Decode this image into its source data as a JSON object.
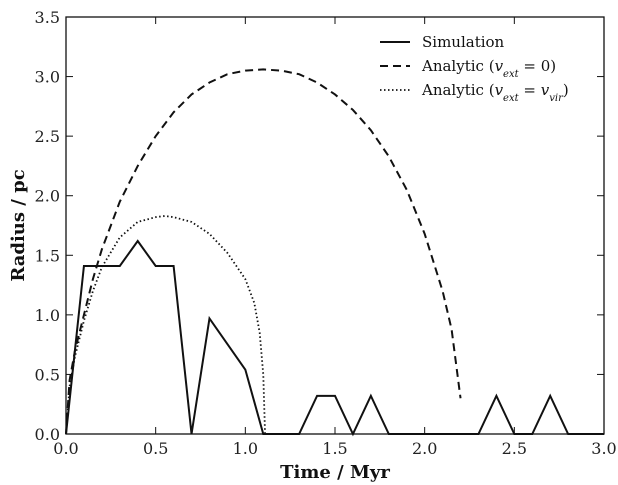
{
  "chart_data": {
    "type": "line",
    "xlabel": "Time / Myr",
    "ylabel": "Radius / pc",
    "xlim": [
      0.0,
      3.0
    ],
    "ylim": [
      0.0,
      3.5
    ],
    "xticks": [
      "0.0",
      "0.5",
      "1.0",
      "1.5",
      "2.0",
      "2.5",
      "3.0"
    ],
    "yticks": [
      "0.0",
      "0.5",
      "1.0",
      "1.5",
      "2.0",
      "2.5",
      "3.0",
      "3.5"
    ],
    "grid": false,
    "legend_position": "top-right",
    "series": [
      {
        "name": "Simulation",
        "style": "solid",
        "color": "#111111",
        "points": [
          [
            0.0,
            0.0
          ],
          [
            0.1,
            1.41
          ],
          [
            0.3,
            1.41
          ],
          [
            0.4,
            1.62
          ],
          [
            0.5,
            1.41
          ],
          [
            0.6,
            1.41
          ],
          [
            0.7,
            0.0
          ],
          [
            0.8,
            0.97
          ],
          [
            1.0,
            0.54
          ],
          [
            1.1,
            0.0
          ],
          [
            1.3,
            0.0
          ],
          [
            1.4,
            0.32
          ],
          [
            1.5,
            0.32
          ],
          [
            1.6,
            0.0
          ],
          [
            1.7,
            0.32
          ],
          [
            1.8,
            0.0
          ],
          [
            2.3,
            0.0
          ],
          [
            2.4,
            0.32
          ],
          [
            2.5,
            0.0
          ],
          [
            2.6,
            0.0
          ],
          [
            2.7,
            0.32
          ],
          [
            2.8,
            0.0
          ],
          [
            3.0,
            0.0
          ]
        ]
      },
      {
        "name_html": "Analytic (<tspan class=\"legend-sub\">v<tspan baseline-shift=\"sub\" font-size=\"11\">ext</tspan> = 0</tspan>)",
        "name": "Analytic (v_ext = 0)",
        "style": "dashed",
        "color": "#111111",
        "points": [
          [
            0.0,
            0.0
          ],
          [
            0.02,
            0.45
          ],
          [
            0.05,
            0.7
          ],
          [
            0.1,
            1.0
          ],
          [
            0.15,
            1.3
          ],
          [
            0.2,
            1.55
          ],
          [
            0.3,
            1.95
          ],
          [
            0.4,
            2.25
          ],
          [
            0.5,
            2.5
          ],
          [
            0.6,
            2.7
          ],
          [
            0.7,
            2.85
          ],
          [
            0.8,
            2.95
          ],
          [
            0.9,
            3.02
          ],
          [
            1.0,
            3.05
          ],
          [
            1.1,
            3.06
          ],
          [
            1.2,
            3.05
          ],
          [
            1.3,
            3.02
          ],
          [
            1.4,
            2.95
          ],
          [
            1.5,
            2.85
          ],
          [
            1.6,
            2.72
          ],
          [
            1.7,
            2.55
          ],
          [
            1.8,
            2.33
          ],
          [
            1.9,
            2.05
          ],
          [
            2.0,
            1.68
          ],
          [
            2.1,
            1.2
          ],
          [
            2.15,
            0.88
          ],
          [
            2.2,
            0.3
          ]
        ]
      },
      {
        "name": "Analytic (v_ext = v_vir)",
        "style": "dotted",
        "color": "#111111",
        "points": [
          [
            0.0,
            0.0
          ],
          [
            0.02,
            0.4
          ],
          [
            0.05,
            0.65
          ],
          [
            0.1,
            0.95
          ],
          [
            0.15,
            1.2
          ],
          [
            0.2,
            1.4
          ],
          [
            0.3,
            1.65
          ],
          [
            0.4,
            1.78
          ],
          [
            0.5,
            1.82
          ],
          [
            0.55,
            1.83
          ],
          [
            0.6,
            1.82
          ],
          [
            0.7,
            1.78
          ],
          [
            0.8,
            1.68
          ],
          [
            0.9,
            1.52
          ],
          [
            1.0,
            1.3
          ],
          [
            1.05,
            1.1
          ],
          [
            1.08,
            0.85
          ],
          [
            1.1,
            0.5
          ],
          [
            1.11,
            0.0
          ]
        ]
      }
    ],
    "legend": [
      {
        "label": "Simulation",
        "style": "solid"
      },
      {
        "label_main": "Analytic (",
        "v": "v",
        "sub": "ext",
        "rest": " = 0)",
        "style": "dashed"
      },
      {
        "label_main": "Analytic (",
        "v": "v",
        "sub": "ext",
        "rest": " = ",
        "v2": "v",
        "sub2": "vir",
        "end": ")",
        "style": "dotted"
      }
    ]
  }
}
